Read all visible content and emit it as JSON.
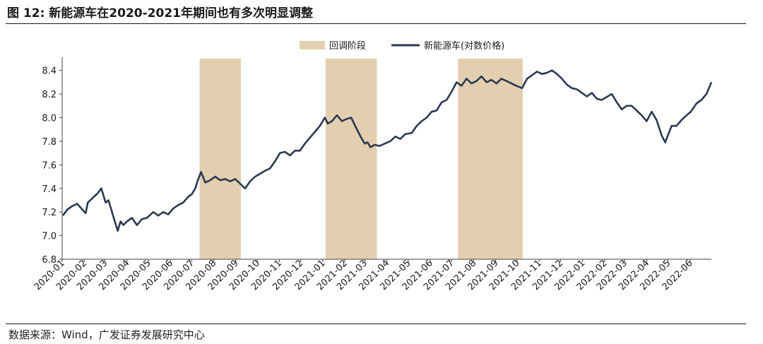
{
  "figure": {
    "title": "图 12: 新能源车在2020-2021年期间也有多次明显调整",
    "source": "数据来源：Wind，广发证券发展研究中心"
  },
  "colors": {
    "line": "#2b3a52",
    "shade": "#e3cfb0",
    "axis": "#444444"
  },
  "chart_data": {
    "type": "line",
    "title": "",
    "xlabel": "",
    "ylabel": "",
    "ylim": [
      6.8,
      8.5
    ],
    "yticks": [
      "8.4",
      "8.2",
      "8.0",
      "7.8",
      "7.6",
      "7.4",
      "7.2",
      "7.0",
      "6.8"
    ],
    "xticks": [
      "2020-01",
      "2020-02",
      "2020-03",
      "2020-04",
      "2020-05",
      "2020-06",
      "2020-07",
      "2020-08",
      "2020-09",
      "2020-10",
      "2020-11",
      "2020-12",
      "2021-01",
      "2021-02",
      "2021-03",
      "2021-04",
      "2021-05",
      "2021-06",
      "2021-07",
      "2021-08",
      "2021-09",
      "2021-10",
      "2021-11",
      "2021-12",
      "2022-01",
      "2022-02",
      "2022-03",
      "2022-04",
      "2022-05",
      "2022-06"
    ],
    "legend": {
      "position": "top",
      "shade_label": "回调阶段",
      "line_label": "新能源车(对数价格)"
    },
    "shaded_periods": [
      {
        "start": "2020-07-12",
        "end": "2020-09-08"
      },
      {
        "start": "2021-01-05",
        "end": "2021-03-18"
      },
      {
        "start": "2021-07-10",
        "end": "2021-10-09"
      }
    ],
    "series": [
      {
        "name": "新能源车(对数价格)",
        "x": [
          "2020-01-02",
          "2020-01-08",
          "2020-01-15",
          "2020-01-22",
          "2020-02-03",
          "2020-02-06",
          "2020-02-13",
          "2020-02-20",
          "2020-02-25",
          "2020-03-02",
          "2020-03-06",
          "2020-03-10",
          "2020-03-16",
          "2020-03-19",
          "2020-03-23",
          "2020-03-27",
          "2020-04-01",
          "2020-04-08",
          "2020-04-15",
          "2020-04-22",
          "2020-04-29",
          "2020-05-08",
          "2020-05-15",
          "2020-05-22",
          "2020-05-29",
          "2020-06-05",
          "2020-06-12",
          "2020-06-19",
          "2020-06-26",
          "2020-07-01",
          "2020-07-06",
          "2020-07-09",
          "2020-07-14",
          "2020-07-20",
          "2020-07-27",
          "2020-08-03",
          "2020-08-10",
          "2020-08-17",
          "2020-08-24",
          "2020-08-31",
          "2020-09-07",
          "2020-09-14",
          "2020-09-21",
          "2020-09-28",
          "2020-10-12",
          "2020-10-19",
          "2020-10-26",
          "2020-11-02",
          "2020-11-09",
          "2020-11-16",
          "2020-11-23",
          "2020-11-30",
          "2020-12-07",
          "2020-12-14",
          "2020-12-21",
          "2020-12-28",
          "2021-01-04",
          "2021-01-08",
          "2021-01-14",
          "2021-01-21",
          "2021-01-28",
          "2021-02-04",
          "2021-02-10",
          "2021-02-18",
          "2021-02-24",
          "2021-03-01",
          "2021-03-05",
          "2021-03-09",
          "2021-03-15",
          "2021-03-22",
          "2021-03-29",
          "2021-04-06",
          "2021-04-13",
          "2021-04-20",
          "2021-04-27",
          "2021-05-06",
          "2021-05-13",
          "2021-05-20",
          "2021-05-27",
          "2021-06-03",
          "2021-06-10",
          "2021-06-17",
          "2021-06-24",
          "2021-07-01",
          "2021-07-08",
          "2021-07-15",
          "2021-07-22",
          "2021-07-29",
          "2021-08-05",
          "2021-08-12",
          "2021-08-19",
          "2021-08-26",
          "2021-09-02",
          "2021-09-09",
          "2021-09-16",
          "2021-09-23",
          "2021-09-30",
          "2021-10-08",
          "2021-10-15",
          "2021-10-22",
          "2021-10-29",
          "2021-11-05",
          "2021-11-12",
          "2021-11-19",
          "2021-11-26",
          "2021-12-03",
          "2021-12-10",
          "2021-12-17",
          "2021-12-24",
          "2021-12-31",
          "2022-01-07",
          "2022-01-14",
          "2022-01-21",
          "2022-01-28",
          "2022-02-11",
          "2022-02-18",
          "2022-02-25",
          "2022-03-04",
          "2022-03-11",
          "2022-03-18",
          "2022-03-25",
          "2022-04-01",
          "2022-04-08",
          "2022-04-15",
          "2022-04-22",
          "2022-04-27",
          "2022-05-06",
          "2022-05-13",
          "2022-05-20",
          "2022-05-27",
          "2022-06-02",
          "2022-06-10",
          "2022-06-17",
          "2022-06-24",
          "2022-07-01"
        ],
        "values": [
          7.17,
          7.22,
          7.25,
          7.27,
          7.19,
          7.28,
          7.32,
          7.36,
          7.4,
          7.28,
          7.3,
          7.22,
          7.1,
          7.04,
          7.12,
          7.09,
          7.12,
          7.15,
          7.09,
          7.14,
          7.15,
          7.2,
          7.17,
          7.2,
          7.18,
          7.23,
          7.26,
          7.28,
          7.33,
          7.35,
          7.4,
          7.46,
          7.54,
          7.45,
          7.47,
          7.5,
          7.47,
          7.48,
          7.46,
          7.48,
          7.44,
          7.4,
          7.46,
          7.5,
          7.55,
          7.57,
          7.63,
          7.7,
          7.71,
          7.68,
          7.72,
          7.72,
          7.78,
          7.83,
          7.88,
          7.93,
          8.0,
          7.95,
          7.97,
          8.02,
          7.97,
          7.99,
          8.0,
          7.9,
          7.83,
          7.78,
          7.79,
          7.75,
          7.77,
          7.76,
          7.78,
          7.8,
          7.84,
          7.82,
          7.86,
          7.87,
          7.93,
          7.97,
          8.0,
          8.05,
          8.06,
          8.13,
          8.15,
          8.22,
          8.3,
          8.27,
          8.33,
          8.29,
          8.31,
          8.35,
          8.3,
          8.32,
          8.29,
          8.33,
          8.31,
          8.29,
          8.27,
          8.25,
          8.33,
          8.36,
          8.39,
          8.37,
          8.38,
          8.4,
          8.37,
          8.33,
          8.28,
          8.25,
          8.24,
          8.21,
          8.18,
          8.21,
          8.16,
          8.15,
          8.2,
          8.13,
          8.07,
          8.1,
          8.1,
          8.06,
          8.02,
          7.97,
          8.05,
          7.98,
          7.85,
          7.79,
          7.93,
          7.93,
          7.98,
          8.02,
          8.05,
          8.12,
          8.15,
          8.2,
          8.3
        ]
      }
    ]
  }
}
